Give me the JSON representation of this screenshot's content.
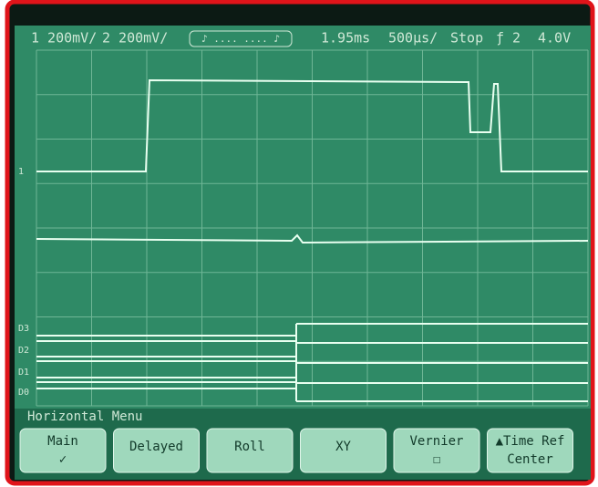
{
  "status_bar": {
    "ch1": "1 200mV/",
    "ch2": "2 200mV/",
    "acq": "♪ .... .... ♪",
    "delay": "1.95ms",
    "timebase": "500µs/",
    "run": "Stop",
    "trigger": "ƒ 2",
    "level": "4.0V"
  },
  "channel_labels": [
    "1",
    "D3",
    "D2",
    "D1",
    "D0"
  ],
  "menu": {
    "title": "Horizontal Menu",
    "buttons": [
      {
        "label": "Main",
        "sub": "✓"
      },
      {
        "label": "Delayed"
      },
      {
        "label": "Roll"
      },
      {
        "label": "XY"
      },
      {
        "label": "Vernier",
        "sub": "☐"
      },
      {
        "label": "▲Time Ref",
        "sub": "Center"
      }
    ]
  }
}
